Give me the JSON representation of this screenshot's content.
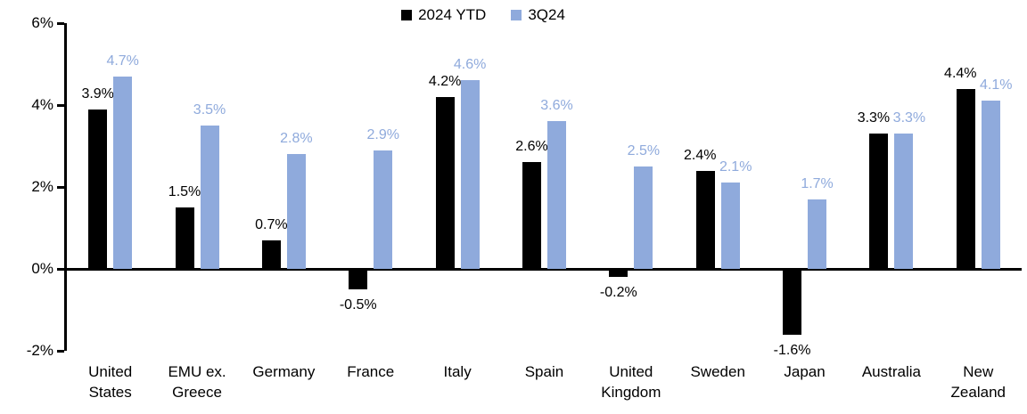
{
  "chart_data": {
    "type": "bar",
    "title": "",
    "categories": [
      "United States",
      "EMU ex. Greece",
      "Germany",
      "France",
      "Italy",
      "Spain",
      "United Kingdom",
      "Sweden",
      "Japan",
      "Australia",
      "New Zealand"
    ],
    "series": [
      {
        "name": "2024 YTD",
        "color": "#000000",
        "values": [
          3.9,
          1.5,
          0.7,
          -0.5,
          4.2,
          2.6,
          -0.2,
          2.4,
          -1.6,
          3.3,
          4.4
        ]
      },
      {
        "name": "3Q24",
        "color": "#8FAADC",
        "values": [
          4.7,
          3.5,
          2.8,
          2.9,
          4.6,
          3.6,
          2.5,
          2.1,
          1.7,
          3.3,
          4.1
        ]
      }
    ],
    "value_suffix": "%",
    "value_decimals": 1,
    "ylim": [
      -2,
      6
    ],
    "ytick_values": [
      6,
      4,
      2,
      0,
      -2
    ],
    "grid": false,
    "legend_position": "top-center",
    "data_labels": true
  }
}
